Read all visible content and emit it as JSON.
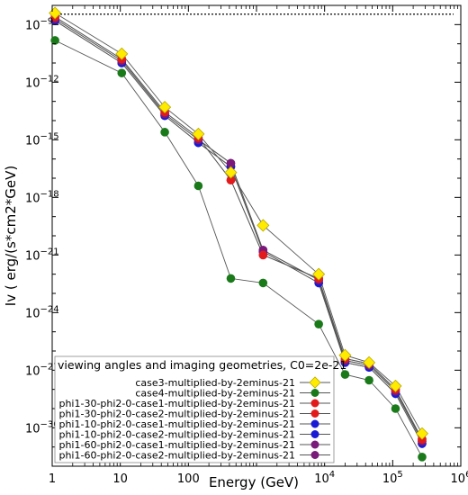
{
  "chart_data": {
    "type": "scatter",
    "title": "",
    "xlabel": "Energy (GeV)",
    "ylabel": "Iv ( erg/(s*cm2*GeV)",
    "xscale": "log",
    "yscale": "log",
    "xlim": [
      1,
      1000000
    ],
    "ylim": [
      1e-32,
      1e-08
    ],
    "grid": false,
    "legend_title": "viewing angles and imaging geometries, C0=2e-21",
    "legend_position": "lower-left",
    "x_tick_labels": [
      "1",
      "10",
      "100",
      "10^4",
      "10^5",
      "10^6"
    ],
    "y_tick_labels": [
      "10^-9",
      "10^-12",
      "10^-15",
      "10^-18",
      "10^-21",
      "10^-24",
      "10^-27",
      "10^-30"
    ],
    "reference_line": {
      "style": "dotted",
      "x": [
        1,
        1000000
      ],
      "y": [
        3.5e-09,
        3.5e-09
      ]
    },
    "x": [
      1.1,
      10.5,
      45,
      140,
      420,
      1250,
      8200,
      20000,
      45000,
      110000,
      270000
    ],
    "series": [
      {
        "name": "case3-multiplied-by-2eminus-21",
        "color": "#ffeb00",
        "marker": "diamond",
        "values": [
          4e-09,
          3e-11,
          5e-14,
          2e-15,
          2e-17,
          3.5e-20,
          1e-22,
          6e-27,
          2.5e-27,
          1.5e-28,
          5e-31
        ]
      },
      {
        "name": "case4-multiplied-by-2eminus-21",
        "color": "#1a7a1a",
        "marker": "circle",
        "values": [
          1.5e-10,
          3e-12,
          2.5e-15,
          4e-18,
          6e-23,
          3.5e-23,
          2.5e-25,
          6e-28,
          3e-28,
          1e-29,
          3e-32
        ]
      },
      {
        "name": "phi1-30-phi2-0-case1-multiplied-by-2eminus-21",
        "color": "#e31a1c",
        "marker": "circle",
        "values": [
          2.5e-09,
          1.6e-11,
          2.8e-14,
          1.3e-15,
          8e-18,
          1e-21,
          6e-23,
          4e-27,
          2.2e-27,
          1e-28,
          2.5e-31
        ]
      },
      {
        "name": "phi1-30-phi2-0-case2-multiplied-by-2eminus-21",
        "color": "#e31a1c",
        "marker": "circle",
        "values": [
          2.5e-09,
          1.6e-11,
          2.8e-14,
          1.3e-15,
          8e-18,
          1e-21,
          6e-23,
          4e-27,
          2.2e-27,
          1e-28,
          2.5e-31
        ]
      },
      {
        "name": "phi1-10-phi2-0-case1-multiplied-by-2eminus-21",
        "color": "#1a1ad6",
        "marker": "circle",
        "values": [
          1.6e-09,
          1e-11,
          1.8e-14,
          7e-16,
          4e-17,
          1.5e-21,
          3.5e-23,
          2.5e-27,
          1.4e-27,
          6e-29,
          1.5e-31
        ]
      },
      {
        "name": "phi1-10-phi2-0-case2-multiplied-by-2eminus-21",
        "color": "#1a1ad6",
        "marker": "circle",
        "values": [
          1.6e-09,
          1e-11,
          1.8e-14,
          7e-16,
          4e-17,
          1.5e-21,
          3.5e-23,
          2.5e-27,
          1.4e-27,
          6e-29,
          1.5e-31
        ]
      },
      {
        "name": "phi1-60-phi2-0-case1-multiplied-by-2eminus-21",
        "color": "#7a1a7a",
        "marker": "circle",
        "values": [
          2e-09,
          1.3e-11,
          2.2e-14,
          1e-15,
          6e-17,
          1.8e-21,
          5e-23,
          3.2e-27,
          1.8e-27,
          8e-29,
          2e-31
        ]
      },
      {
        "name": "phi1-60-phi2-0-case2-multiplied-by-2eminus-21",
        "color": "#7a1a7a",
        "marker": "circle",
        "values": [
          2e-09,
          1.3e-11,
          2.2e-14,
          1e-15,
          6e-17,
          1.8e-21,
          5e-23,
          3.2e-27,
          1.8e-27,
          8e-29,
          2e-31
        ]
      }
    ]
  }
}
